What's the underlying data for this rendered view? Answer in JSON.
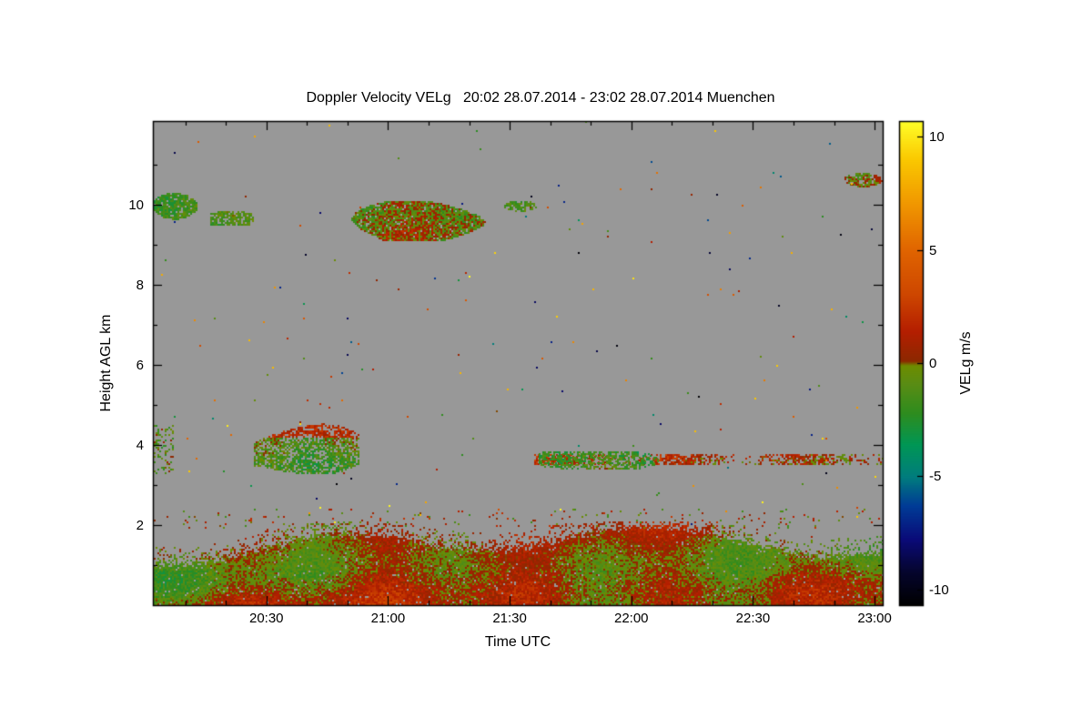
{
  "figure": {
    "background": "#ffffff",
    "text_color": "#000000"
  },
  "chart_data": {
    "type": "heatmap",
    "title": "Doppler Velocity VELg   20:02 28.07.2014 - 23:02 28.07.2014 Muenchen",
    "station": "Muenchen",
    "date": "28.07.2014",
    "time_start_utc": "20:02",
    "time_end_utc": "23:02",
    "xlabel": "Time UTC",
    "ylabel": "Height AGL km",
    "xlim_hours": [
      20.0333,
      23.0333
    ],
    "ylim_km": [
      0,
      12.1
    ],
    "grid": false,
    "no_data_color": "#989898",
    "x_ticks": [
      {
        "label": "20:30",
        "hour": 20.5
      },
      {
        "label": "21:00",
        "hour": 21.0
      },
      {
        "label": "21:30",
        "hour": 21.5
      },
      {
        "label": "22:00",
        "hour": 22.0
      },
      {
        "label": "22:30",
        "hour": 22.5
      },
      {
        "label": "23:00",
        "hour": 23.0
      }
    ],
    "x_minor_tick_minutes": 10,
    "y_ticks": [
      {
        "label": "2",
        "km": 2
      },
      {
        "label": "4",
        "km": 4
      },
      {
        "label": "6",
        "km": 6
      },
      {
        "label": "8",
        "km": 8
      },
      {
        "label": "10",
        "km": 10
      }
    ],
    "y_minor_tick_km": 1,
    "colorbar": {
      "label": "VELg m/s",
      "vmin": -10.7,
      "vmax": 10.7,
      "ticks": [
        {
          "label": "10",
          "value": 10
        },
        {
          "label": "5",
          "value": 5
        },
        {
          "label": "0",
          "value": 0
        },
        {
          "label": "-5",
          "value": -5
        },
        {
          "label": "-10",
          "value": -10
        }
      ],
      "stops": [
        {
          "v": -10.7,
          "color": "#000000"
        },
        {
          "v": -9.2,
          "color": "#05052e"
        },
        {
          "v": -7.8,
          "color": "#0a0a78"
        },
        {
          "v": -6.3,
          "color": "#003c96"
        },
        {
          "v": -5.0,
          "color": "#007d7d"
        },
        {
          "v": -3.6,
          "color": "#009655"
        },
        {
          "v": -2.2,
          "color": "#2e8c1e"
        },
        {
          "v": -0.9,
          "color": "#5a8c14"
        },
        {
          "v": -0.1,
          "color": "#6e8c00"
        },
        {
          "v": 0.1,
          "color": "#8c2800"
        },
        {
          "v": 1.4,
          "color": "#b41e00"
        },
        {
          "v": 3.0,
          "color": "#cd4600"
        },
        {
          "v": 5.0,
          "color": "#e06400"
        },
        {
          "v": 7.0,
          "color": "#f09600"
        },
        {
          "v": 9.0,
          "color": "#fac800"
        },
        {
          "v": 10.7,
          "color": "#ffff28"
        }
      ]
    },
    "features": [
      {
        "name": "cirrus-band-left",
        "shape": "blob",
        "t": [
          20.03,
          20.23
        ],
        "h": [
          9.65,
          10.3
        ],
        "vel": -1.3,
        "spread": 1.1,
        "density": 0.85,
        "seed": 11
      },
      {
        "name": "cirrus-fragment-left",
        "shape": "blob",
        "t": [
          20.27,
          20.45
        ],
        "h": [
          9.5,
          9.85
        ],
        "vel": -1.1,
        "spread": 1.0,
        "density": 0.7,
        "seed": 12
      },
      {
        "name": "cirrus-band-main",
        "shape": "blob",
        "t": [
          20.75,
          21.45
        ],
        "h": [
          9.1,
          10.1
        ],
        "vel": -0.4,
        "spread": 1.7,
        "density": 0.92,
        "seed": 13
      },
      {
        "name": "cirrus-fragment-2130",
        "shape": "blob",
        "t": [
          21.47,
          21.62
        ],
        "h": [
          9.85,
          10.15
        ],
        "vel": -0.9,
        "spread": 1.1,
        "density": 0.75,
        "seed": 14
      },
      {
        "name": "cirrus-band-topright",
        "shape": "blob",
        "t": [
          22.84,
          23.04
        ],
        "h": [
          10.45,
          10.9
        ],
        "vel": -0.6,
        "spread": 1.3,
        "density": 0.8,
        "seed": 15
      },
      {
        "name": "midlevel-cloud-2040",
        "shape": "blob",
        "t": [
          20.45,
          20.88
        ],
        "h": [
          3.25,
          4.55
        ],
        "vel": -1.6,
        "spread": 1.3,
        "density": 0.68,
        "top_vel": 1.6,
        "seed": 16
      },
      {
        "name": "midlevel-left-edge",
        "shape": "specks",
        "t": [
          20.03,
          20.12
        ],
        "h": [
          3.3,
          4.5
        ],
        "vel": -1.0,
        "spread": 1.6,
        "density": 0.22,
        "seed": 17
      },
      {
        "name": "thin-layer-3p6km",
        "shape": "layer",
        "t": [
          21.6,
          23.04
        ],
        "h": [
          3.5,
          3.78
        ],
        "vel": 0.9,
        "spread": 1.3,
        "density": 0.85,
        "seed": 18
      },
      {
        "name": "thin-layer-thick-green",
        "shape": "blob",
        "t": [
          21.62,
          22.12
        ],
        "h": [
          3.3,
          3.9
        ],
        "vel": -1.3,
        "spread": 1.2,
        "density": 0.6,
        "seed": 19
      },
      {
        "name": "boundary-layer",
        "shape": "boundary",
        "t": [
          20.03,
          23.04
        ],
        "h": [
          0,
          2.1
        ],
        "vel": 0.2,
        "spread": 1.8,
        "density": 0.97,
        "seed": 20
      },
      {
        "name": "boundary-overshoot-specks",
        "shape": "specks",
        "t": [
          20.03,
          23.04
        ],
        "h": [
          1.9,
          2.4
        ],
        "vel": 0.3,
        "spread": 2.2,
        "density": 0.04,
        "seed": 21
      },
      {
        "name": "isolated-noise-specks",
        "shape": "specks",
        "t": [
          20.03,
          23.04
        ],
        "h": [
          2.0,
          12.1
        ],
        "vel": 0,
        "spread": 10,
        "density": 0.002,
        "random_color": true,
        "seed": 22
      }
    ]
  }
}
